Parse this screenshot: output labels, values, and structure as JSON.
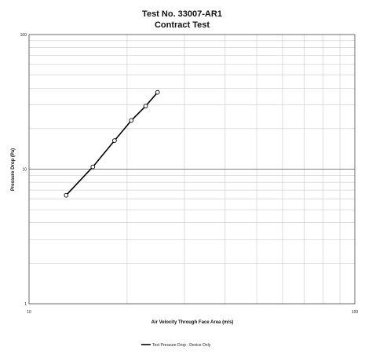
{
  "chart_data": {
    "type": "line",
    "title": "Test No. 33007-AR1",
    "subtitle": "Contract Test",
    "xlabel": "Air Velocity Through Face Area (m/s)",
    "ylabel": "Pressure Drop (Pa)",
    "x_scale": "log",
    "y_scale": "log",
    "xlim": [
      10,
      100
    ],
    "ylim": [
      1,
      100
    ],
    "x_ticks": [
      "10",
      "100"
    ],
    "y_ticks": [
      "1",
      "10",
      "100"
    ],
    "grid": true,
    "legend_position": "bottom-center",
    "series": [
      {
        "name": "Test Pressure Drop - Device Only",
        "color": "#000000",
        "marker": "open-circle",
        "x": [
          13,
          15.7,
          18.3,
          20.6,
          22.8,
          24.8
        ],
        "y": [
          6.4,
          10.4,
          16.3,
          23,
          29.4,
          37.2
        ]
      }
    ]
  }
}
